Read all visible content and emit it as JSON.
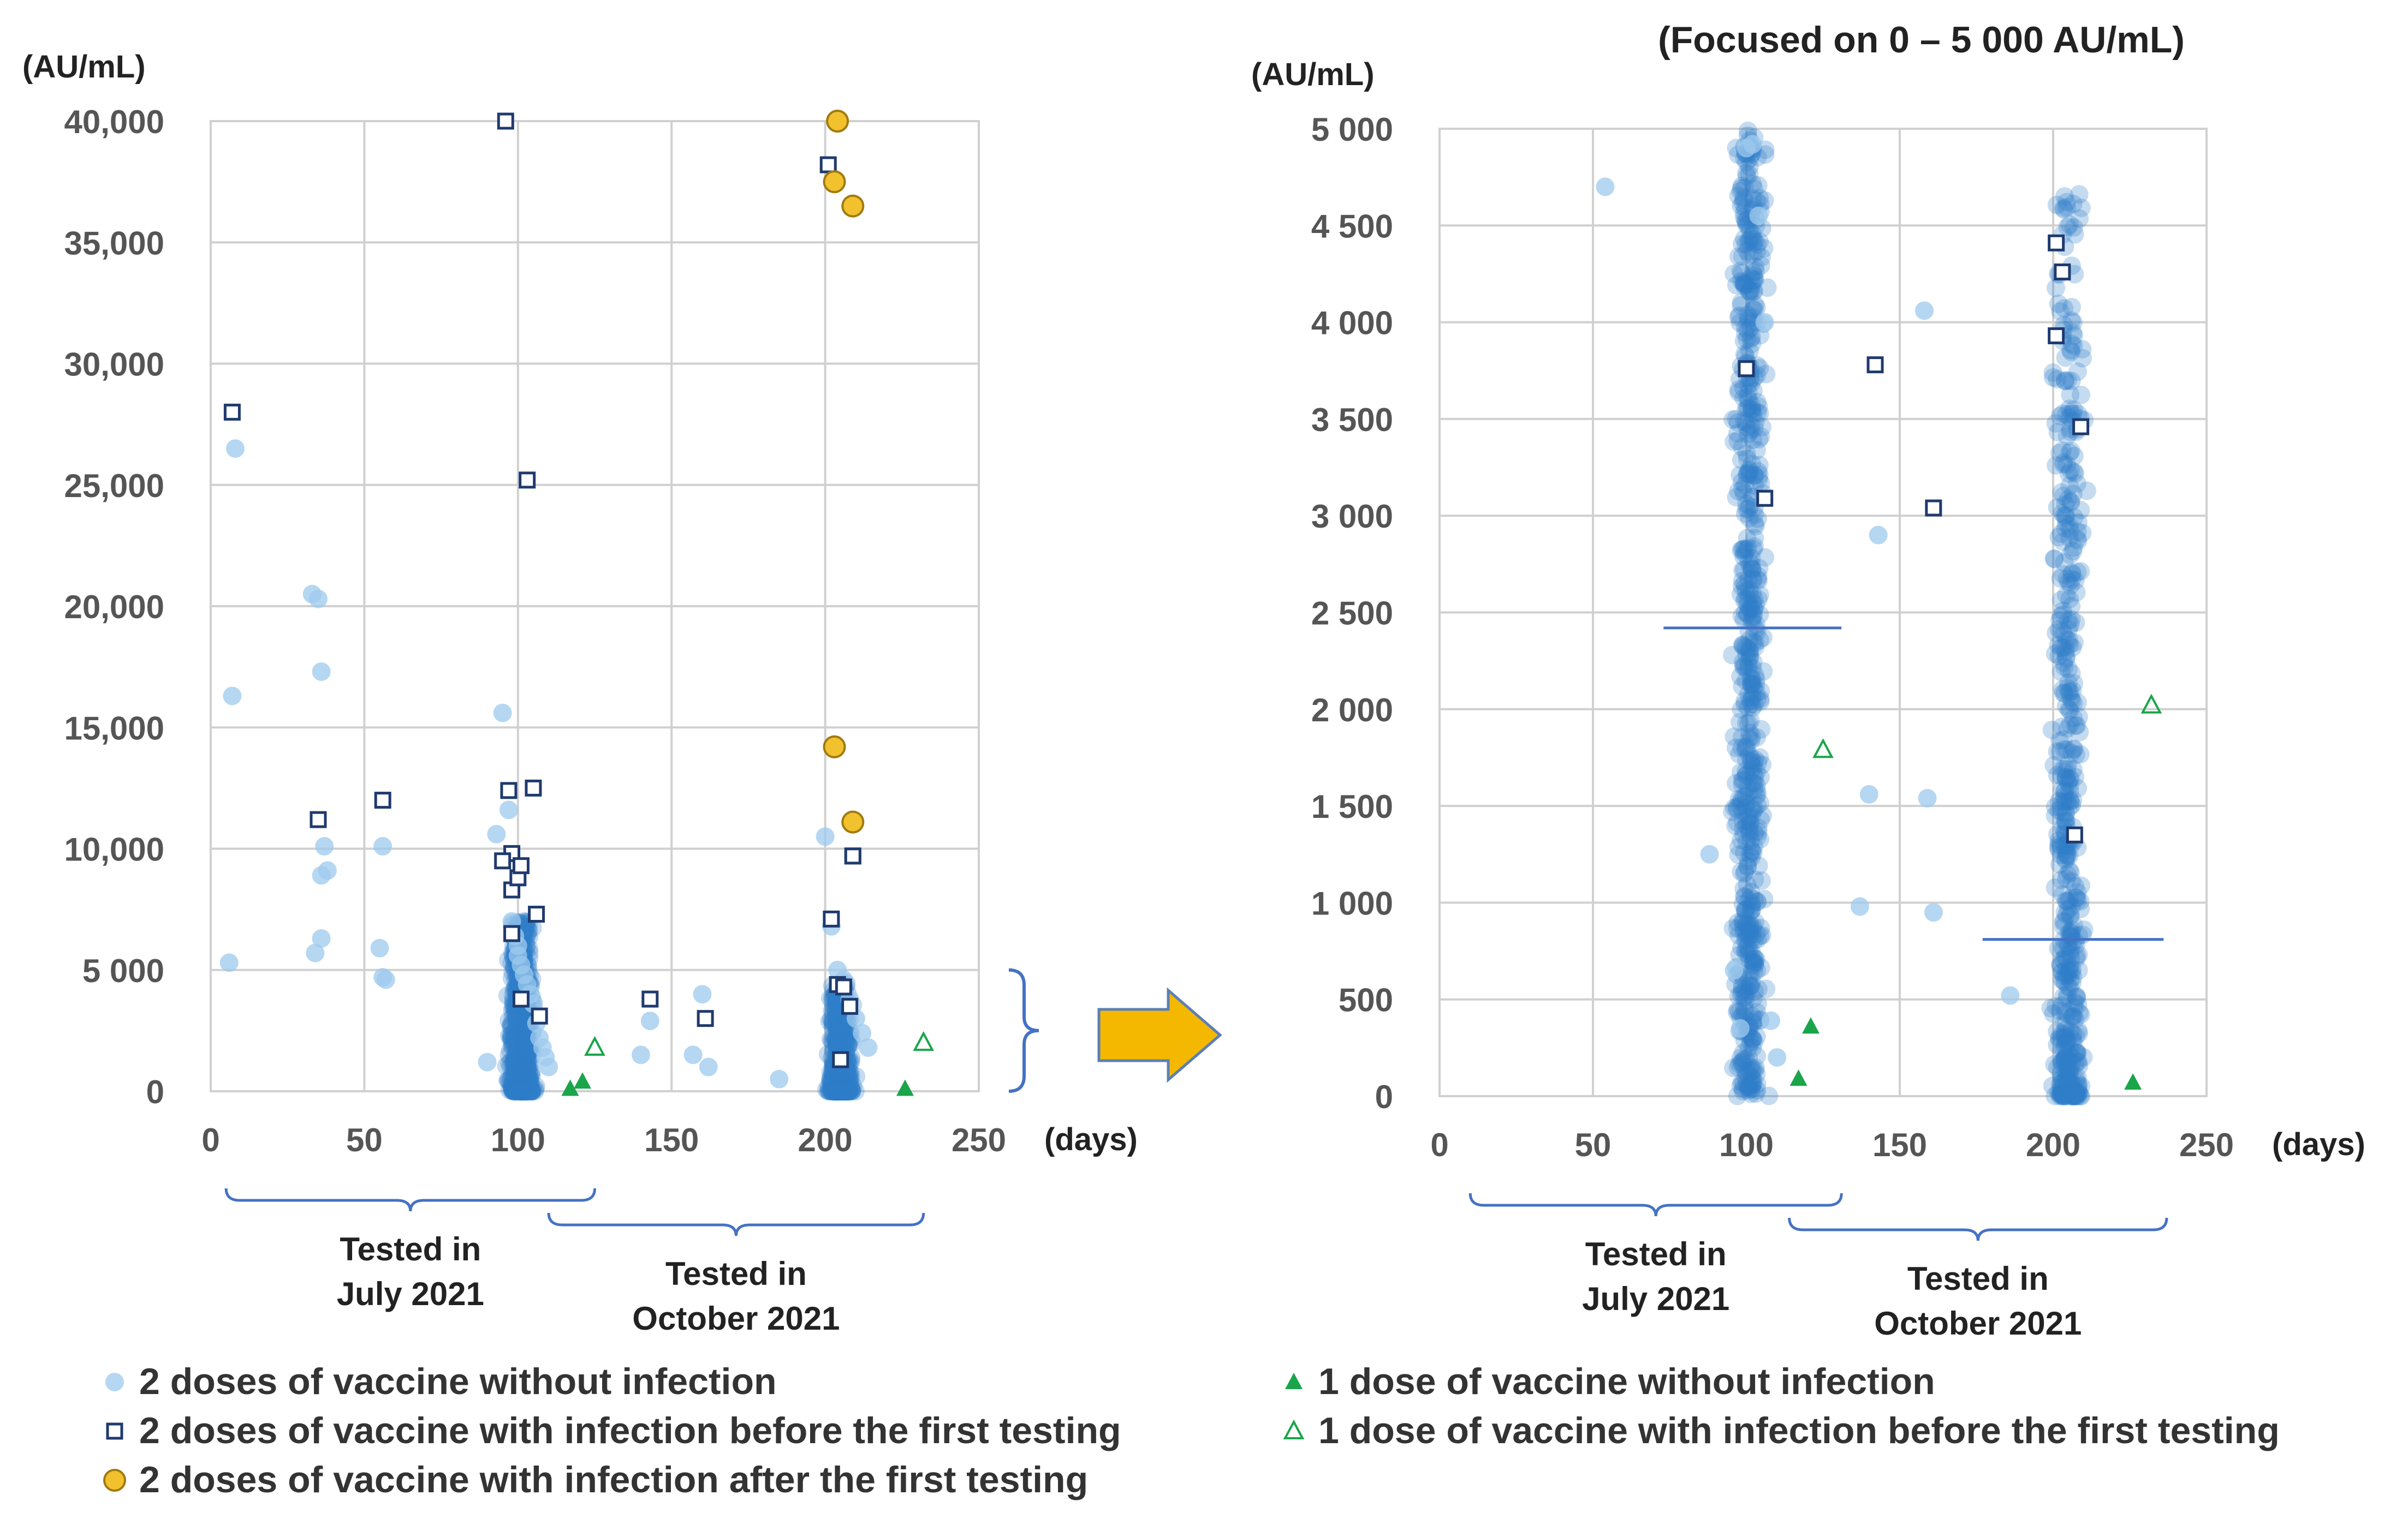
{
  "chart_data": [
    {
      "type": "scatter",
      "panel": "left",
      "title": "",
      "ylabel": "(AU/mL)",
      "xlabel": "(days)",
      "xlim": [
        0,
        250
      ],
      "ylim": [
        0,
        40000
      ],
      "xticks": [
        0,
        50,
        100,
        150,
        200,
        250
      ],
      "yticks": [
        0,
        5000,
        10000,
        15000,
        20000,
        25000,
        30000,
        35000,
        40000
      ],
      "ytick_labels": [
        "0",
        "5 000",
        "10,000",
        "15,000",
        "20,000",
        "25,000",
        "30,000",
        "35,000",
        "40,000"
      ],
      "xtick_labels": [
        "0",
        "50",
        "100",
        "150",
        "200",
        "250"
      ],
      "groups": [
        {
          "label": "Tested in\nJuly 2021",
          "x_range": [
            5,
            125
          ]
        },
        {
          "label": "Tested in\nOctober 2021",
          "x_range": [
            110,
            232
          ]
        }
      ],
      "series": [
        {
          "name": "2 doses of vaccine without infection",
          "marker": "circle-light",
          "x": [
            6,
            8,
            7,
            33,
            35,
            36,
            37,
            36,
            38,
            36,
            34,
            56,
            55,
            56,
            57,
            90,
            93,
            95,
            97,
            98,
            99,
            100,
            100,
            101,
            102,
            103,
            104,
            105,
            106,
            107,
            108,
            109,
            110,
            140,
            143,
            160,
            162,
            157,
            185,
            200,
            202,
            204,
            206,
            208,
            210,
            212,
            214
          ],
          "y": [
            5300,
            26500,
            16300,
            20500,
            20300,
            17300,
            10100,
            8900,
            9100,
            6300,
            5700,
            10100,
            5900,
            4700,
            4600,
            1200,
            10600,
            15600,
            11600,
            7000,
            6400,
            6000,
            5600,
            5200,
            4800,
            4400,
            4000,
            3600,
            2800,
            2200,
            1800,
            1400,
            1000,
            1500,
            2900,
            4000,
            1000,
            1500,
            500,
            10500,
            6800,
            5000,
            4600,
            3800,
            3000,
            2400,
            1800
          ]
        },
        {
          "name": "2 doses of vaccine with infection before the first testing",
          "marker": "square",
          "x": [
            7,
            35,
            56,
            96,
            97,
            98,
            95,
            98,
            103,
            105,
            100,
            101,
            106,
            107,
            101,
            98,
            143,
            161,
            201,
            202,
            204,
            206,
            208,
            209
          ],
          "y": [
            28000,
            11200,
            12000,
            40000,
            12400,
            9800,
            9500,
            8300,
            25200,
            12500,
            8800,
            9300,
            7300,
            3100,
            3800,
            6500,
            3800,
            3000,
            38200,
            7100,
            4400,
            4300,
            3500,
            9700
          ],
          "x_ext": [
            209,
            205
          ],
          "y_ext": [
            9700,
            1300
          ]
        },
        {
          "name": "2 doses of vaccine with infection after the first testing",
          "marker": "circle-gold",
          "x": [
            204,
            203,
            209,
            203,
            209
          ],
          "y": [
            40000,
            37500,
            36500,
            14200,
            11100
          ]
        },
        {
          "name": "1 dose of vaccine without infection",
          "marker": "triangle-filled",
          "x": [
            117,
            121,
            226
          ],
          "y": [
            100,
            400,
            100
          ]
        },
        {
          "name": "1 dose of vaccine with infection before the first testing",
          "marker": "triangle-open",
          "x": [
            125,
            232
          ],
          "y": [
            1800,
            2000
          ]
        }
      ]
    },
    {
      "type": "scatter",
      "panel": "right",
      "title": "(Focused on 0 – 5 000 AU/mL)",
      "ylabel": "(AU/mL)",
      "xlabel": "(days)",
      "xlim": [
        0,
        250
      ],
      "ylim": [
        0,
        5000
      ],
      "xticks": [
        0,
        50,
        100,
        150,
        200,
        250
      ],
      "yticks": [
        0,
        500,
        1000,
        1500,
        2000,
        2500,
        3000,
        3500,
        4000,
        4500,
        5000
      ],
      "ytick_labels": [
        "0",
        "500",
        "1 000",
        "1 500",
        "2 000",
        "2 500",
        "3 000",
        "3 500",
        "4 000",
        "4 500",
        "5 000"
      ],
      "xtick_labels": [
        "0",
        "50",
        "100",
        "150",
        "200",
        "250"
      ],
      "groups": [
        {
          "label": "Tested in\nJuly 2021",
          "x_range": [
            10,
            131
          ]
        },
        {
          "label": "Tested in\nOctober 2021",
          "x_range": [
            114,
            237
          ]
        }
      ],
      "medians": [
        {
          "x_range": [
            73,
            131
          ],
          "y": 2420
        },
        {
          "x_range": [
            177,
            236
          ],
          "y": 810
        }
      ],
      "series": [
        {
          "name": "2 doses of vaccine without infection",
          "marker": "circle-light",
          "x": [
            54,
            88,
            96,
            98,
            100,
            102,
            104,
            106,
            108,
            110,
            137,
            140,
            143,
            158,
            159,
            161,
            186
          ],
          "y": [
            4700,
            1250,
            650,
            350,
            4900,
            4920,
            4550,
            4000,
            390,
            200,
            980,
            1560,
            2900,
            4060,
            1540,
            950,
            520
          ]
        },
        {
          "name": "2 doses of vaccine with infection before the first testing",
          "marker": "square",
          "x": [
            100,
            106,
            142,
            161,
            201,
            203,
            201,
            209,
            207
          ],
          "y": [
            3760,
            3090,
            3780,
            3040,
            4410,
            4260,
            3930,
            3460,
            1350
          ]
        },
        {
          "name": "1 dose of vaccine without infection",
          "marker": "triangle-filled",
          "x": [
            117,
            121,
            226
          ],
          "y": [
            90,
            360,
            70
          ]
        },
        {
          "name": "1 dose of vaccine with infection before the first testing",
          "marker": "triangle-open",
          "x": [
            125,
            232
          ],
          "y": [
            1790,
            2020
          ]
        }
      ]
    }
  ],
  "legend": [
    {
      "label": "2 doses of vaccine without infection",
      "marker": "circle-light"
    },
    {
      "label": "2 doses of vaccine with infection before the first testing",
      "marker": "square"
    },
    {
      "label": "2 doses of vaccine with infection after the first testing",
      "marker": "circle-gold"
    },
    {
      "label": "1 dose of vaccine without infection",
      "marker": "triangle-filled"
    },
    {
      "label": "1 dose of vaccine with infection before the first testing",
      "marker": "triangle-open"
    }
  ],
  "colors": {
    "light_circle": "#9dc9ee",
    "dense_circle": "#2e7ec9",
    "square_stroke": "#1f3a6e",
    "gold_fill": "#f2c12e",
    "gold_stroke": "#a07a10",
    "green": "#1aa54a",
    "grid": "#d0d0d0",
    "median": "#4472c4",
    "bracket": "#4472c4",
    "arrow_fill": "#f5b800",
    "arrow_stroke": "#5b7fb5"
  }
}
